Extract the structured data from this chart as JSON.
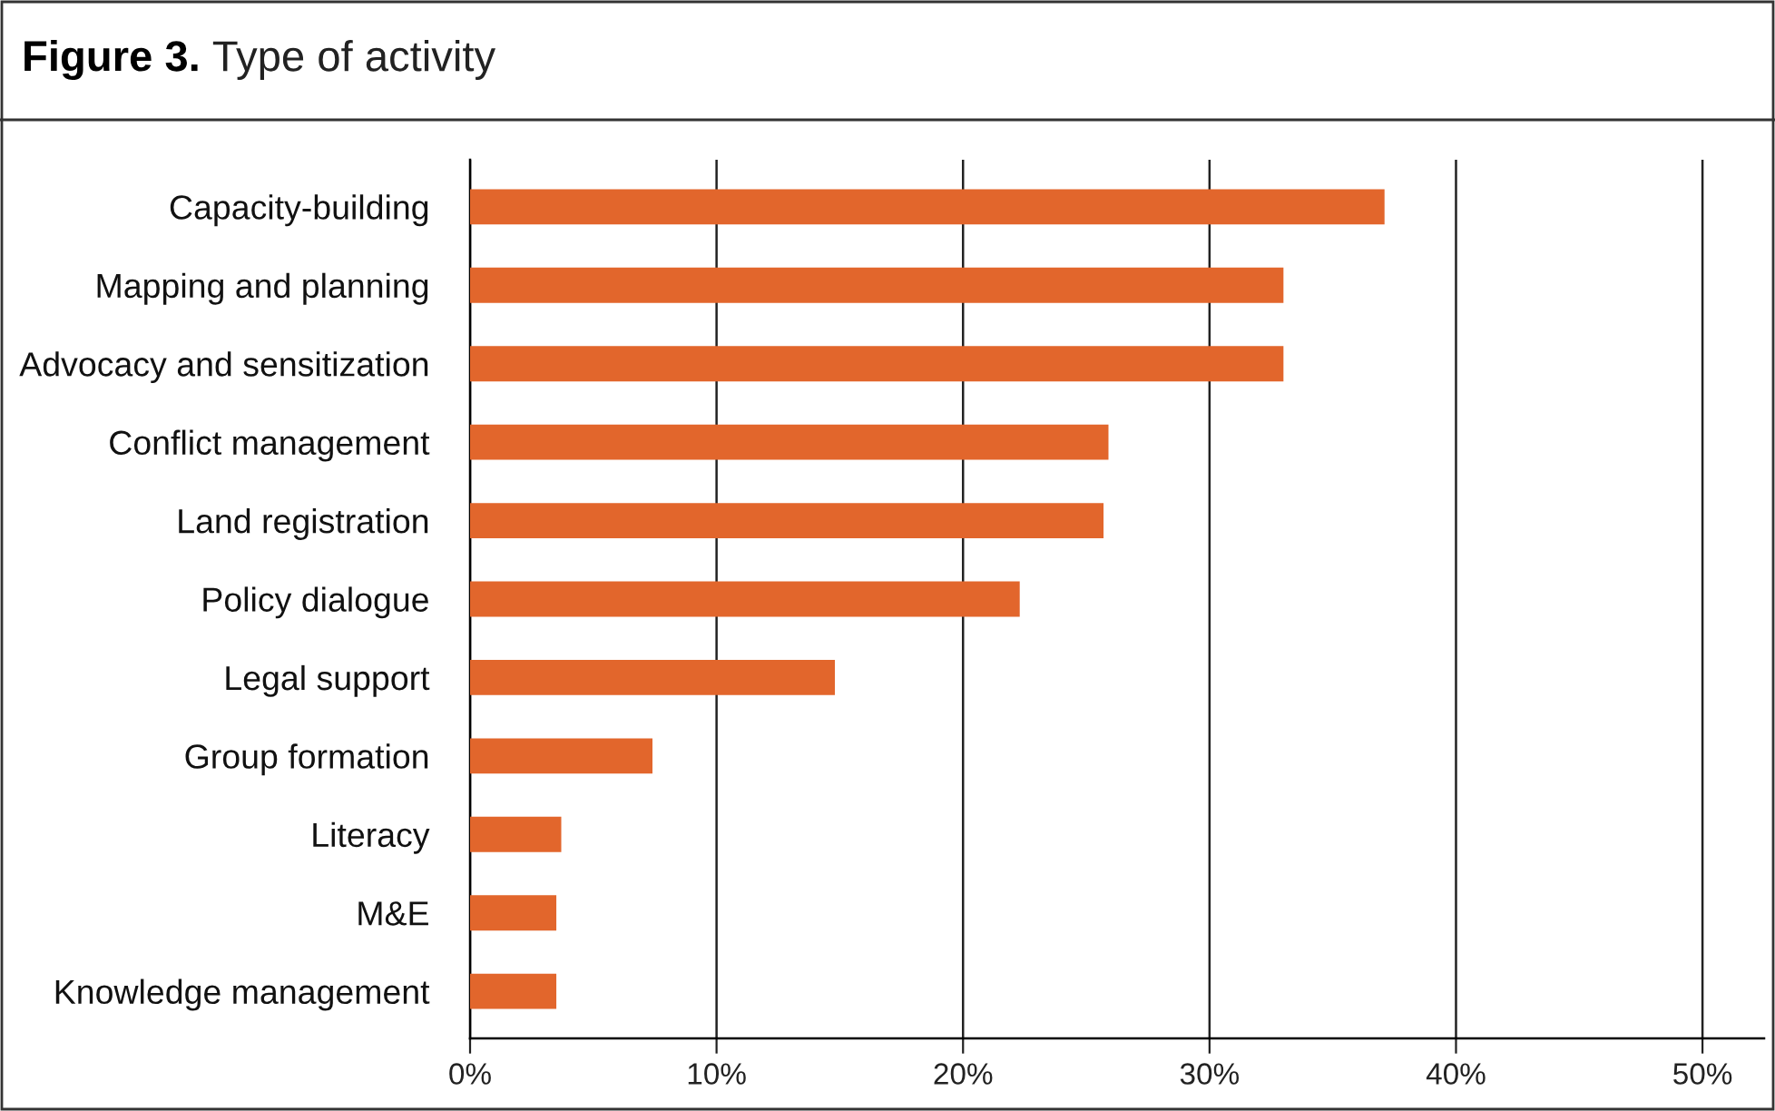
{
  "chart_data": {
    "type": "bar",
    "orientation": "horizontal",
    "title": "Figure 3. Type of activity",
    "categories": [
      "Capacity-building",
      "Mapping and planning",
      "Advocacy and sensitization",
      "Conflict management",
      "Land registration",
      "Policy dialogue",
      "Legal support",
      "Group formation",
      "Literacy",
      "M&E",
      "Knowledge management"
    ],
    "values": [
      37.1,
      33.0,
      33.0,
      25.9,
      25.7,
      22.3,
      14.8,
      7.4,
      3.7,
      3.5,
      3.5
    ],
    "color": "#e2662c",
    "xlim": [
      0,
      52.5
    ],
    "xticks": [
      {
        "value": 0,
        "label": "0%"
      },
      {
        "value": 10,
        "label": "10%"
      },
      {
        "value": 20,
        "label": "20%"
      },
      {
        "value": 30,
        "label": "30%"
      },
      {
        "value": 40,
        "label": "40%"
      },
      {
        "value": 50,
        "label": "50%"
      }
    ],
    "grid": "x",
    "legend": false
  }
}
